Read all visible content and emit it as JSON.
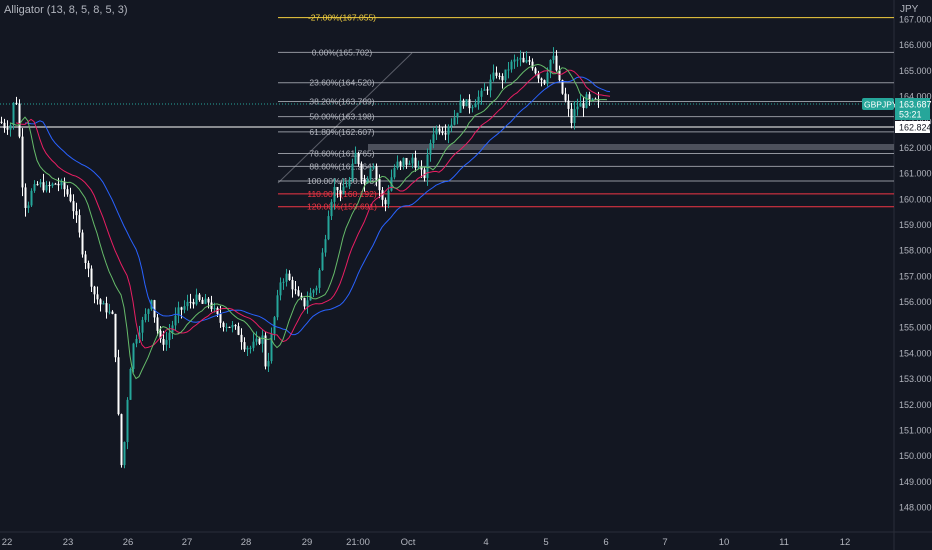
{
  "indicator": {
    "label": "Alligator (13, 8, 5, 8, 5, 3)"
  },
  "price_axis": {
    "currency": "JPY",
    "ticks": [
      "167.000",
      "166.000",
      "165.000",
      "164.000",
      "163.000",
      "162.000",
      "161.000",
      "160.000",
      "159.000",
      "158.000",
      "157.000",
      "156.000",
      "155.000",
      "154.000",
      "153.000",
      "152.000",
      "151.000",
      "150.000",
      "149.000",
      "148.000"
    ]
  },
  "time_axis": {
    "ticks": [
      "22",
      "23",
      "26",
      "27",
      "28",
      "29",
      "21:00",
      "Oct",
      "4",
      "5",
      "6",
      "7",
      "10",
      "11",
      "12"
    ]
  },
  "symbol_tag": {
    "name": "GBPJPY",
    "price": "163.687",
    "countdown": "53:21"
  },
  "crosshair_tag": {
    "price": "162.824"
  },
  "colors": {
    "background": "#131722",
    "up": "#26a69a",
    "down": "#ffffff",
    "jaw": "#2962ff",
    "teeth": "#e91e63",
    "lips": "#66bb6a",
    "fib_neutral": "#b2b5be",
    "fib_top": "#f4d03f",
    "fib_red": "#f23645",
    "tag_bg": "#26a69a"
  },
  "chart_data": {
    "type": "candlestick",
    "symbol": "GBPJPY",
    "y_range": [
      147.8,
      167.2
    ],
    "fib_levels": [
      {
        "label": "-27.00%(167.055)",
        "price": 167.055,
        "color": "yellow"
      },
      {
        "label": "0.00%(165.702)",
        "price": 165.702,
        "color": "neutral"
      },
      {
        "label": "23.60%(164.520)",
        "price": 164.52,
        "color": "neutral"
      },
      {
        "label": "38.20%(163.789)",
        "price": 163.789,
        "color": "neutral"
      },
      {
        "label": "50.00%(163.198)",
        "price": 163.198,
        "color": "neutral"
      },
      {
        "label": "61.80%(162.607)",
        "price": 162.607,
        "color": "neutral"
      },
      {
        "label": "78.60%(161.765)",
        "price": 161.765,
        "color": "neutral"
      },
      {
        "label": "88.60%(161.264)",
        "price": 161.264,
        "color": "neutral"
      },
      {
        "label": "100.00%(160.693)",
        "price": 160.693,
        "color": "neutral"
      },
      {
        "label": "110.00%(160.192)",
        "price": 160.192,
        "color": "red"
      },
      {
        "label": "120.00%(159.691)",
        "price": 159.691,
        "color": "red"
      }
    ],
    "close_path": [
      [
        0,
        163.0
      ],
      [
        5,
        162.8
      ],
      [
        10,
        162.9
      ],
      [
        15,
        164.2
      ],
      [
        18,
        163.0
      ],
      [
        22,
        160.6
      ],
      [
        26,
        159.5
      ],
      [
        30,
        160.2
      ],
      [
        38,
        160.6
      ],
      [
        46,
        160.4
      ],
      [
        55,
        160.6
      ],
      [
        62,
        160.5
      ],
      [
        70,
        160.0
      ],
      [
        76,
        159.2
      ],
      [
        82,
        158.0
      ],
      [
        88,
        157.2
      ],
      [
        94,
        156.3
      ],
      [
        100,
        155.9
      ],
      [
        106,
        155.7
      ],
      [
        112,
        155.4
      ],
      [
        116,
        153.5
      ],
      [
        119,
        150.5
      ],
      [
        122,
        149.2
      ],
      [
        125,
        151.2
      ],
      [
        128,
        152.8
      ],
      [
        132,
        154.2
      ],
      [
        137,
        154.8
      ],
      [
        142,
        155.2
      ],
      [
        147,
        155.6
      ],
      [
        151,
        156.2
      ],
      [
        155,
        155.2
      ],
      [
        160,
        154.4
      ],
      [
        166,
        154.5
      ],
      [
        172,
        155.1
      ],
      [
        178,
        155.6
      ],
      [
        184,
        155.8
      ],
      [
        190,
        156.0
      ],
      [
        196,
        156.1
      ],
      [
        202,
        155.9
      ],
      [
        208,
        156.0
      ],
      [
        214,
        155.6
      ],
      [
        220,
        155.2
      ],
      [
        226,
        155.1
      ],
      [
        232,
        155.0
      ],
      [
        238,
        154.8
      ],
      [
        244,
        154.3
      ],
      [
        250,
        154.2
      ],
      [
        256,
        154.4
      ],
      [
        262,
        154.6
      ],
      [
        266,
        153.2
      ],
      [
        270,
        154.4
      ],
      [
        275,
        155.6
      ],
      [
        280,
        156.8
      ],
      [
        286,
        157.0
      ],
      [
        292,
        156.6
      ],
      [
        298,
        156.1
      ],
      [
        304,
        155.9
      ],
      [
        310,
        156.3
      ],
      [
        316,
        156.6
      ],
      [
        320,
        157.4
      ],
      [
        324,
        158.3
      ],
      [
        328,
        159.5
      ],
      [
        332,
        160.2
      ],
      [
        336,
        160.6
      ],
      [
        340,
        160.0
      ],
      [
        344,
        160.6
      ],
      [
        348,
        160.5
      ],
      [
        352,
        161.2
      ],
      [
        356,
        161.9
      ],
      [
        360,
        161.0
      ],
      [
        364,
        160.6
      ],
      [
        368,
        161.0
      ],
      [
        372,
        161.6
      ],
      [
        376,
        160.8
      ],
      [
        380,
        160.2
      ],
      [
        384,
        159.6
      ],
      [
        388,
        160.4
      ],
      [
        392,
        161.0
      ],
      [
        396,
        161.4
      ],
      [
        400,
        161.2
      ],
      [
        404,
        161.6
      ],
      [
        408,
        161.2
      ],
      [
        412,
        161.6
      ],
      [
        416,
        161.3
      ],
      [
        420,
        161.0
      ],
      [
        424,
        160.9
      ],
      [
        428,
        161.8
      ],
      [
        432,
        162.6
      ],
      [
        436,
        162.7
      ],
      [
        440,
        162.8
      ],
      [
        444,
        162.6
      ],
      [
        448,
        162.9
      ],
      [
        452,
        163.0
      ],
      [
        456,
        163.4
      ],
      [
        460,
        163.7
      ],
      [
        464,
        163.8
      ],
      [
        468,
        163.6
      ],
      [
        472,
        163.7
      ],
      [
        476,
        163.9
      ],
      [
        480,
        164.0
      ],
      [
        484,
        164.2
      ],
      [
        488,
        164.4
      ],
      [
        492,
        164.7
      ],
      [
        496,
        164.9
      ],
      [
        500,
        164.6
      ],
      [
        504,
        164.8
      ],
      [
        508,
        165.1
      ],
      [
        512,
        165.3
      ],
      [
        516,
        165.4
      ],
      [
        520,
        165.4
      ],
      [
        524,
        165.2
      ],
      [
        528,
        165.4
      ],
      [
        532,
        165.2
      ],
      [
        536,
        164.9
      ],
      [
        540,
        164.7
      ],
      [
        544,
        164.6
      ],
      [
        548,
        165.2
      ],
      [
        552,
        165.6
      ],
      [
        556,
        165.0
      ],
      [
        560,
        164.3
      ],
      [
        564,
        163.9
      ],
      [
        568,
        163.4
      ],
      [
        571,
        163.0
      ],
      [
        574,
        163.4
      ],
      [
        578,
        163.7
      ],
      [
        582,
        163.6
      ],
      [
        586,
        163.9
      ],
      [
        590,
        163.7
      ],
      [
        594,
        163.8
      ],
      [
        598,
        163.7
      ],
      [
        600,
        163.69
      ]
    ]
  }
}
